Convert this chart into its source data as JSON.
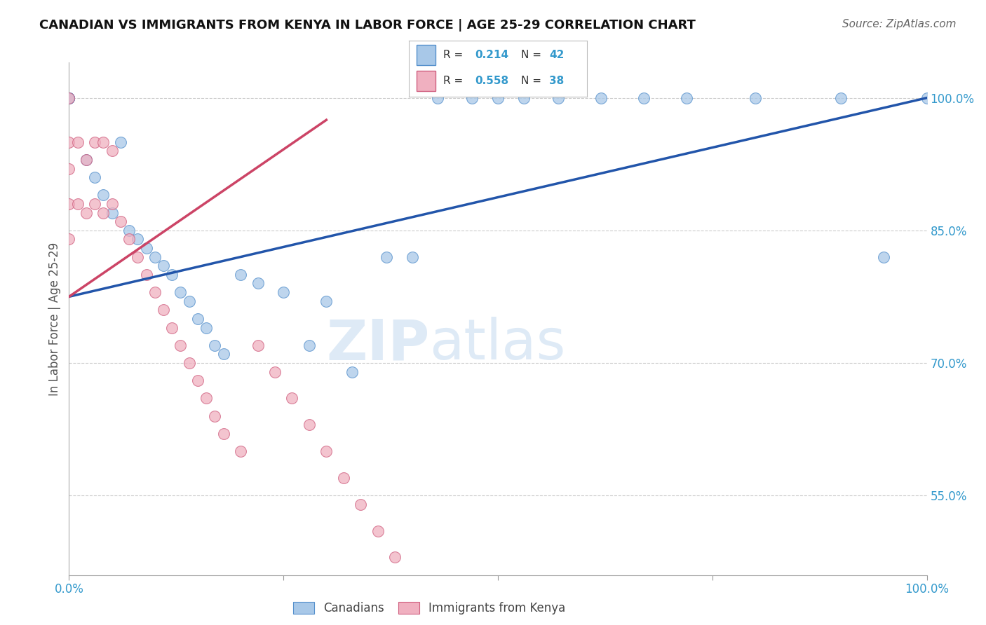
{
  "title": "CANADIAN VS IMMIGRANTS FROM KENYA IN LABOR FORCE | AGE 25-29 CORRELATION CHART",
  "source": "Source: ZipAtlas.com",
  "ylabel": "In Labor Force | Age 25-29",
  "yaxis_labels": [
    "100.0%",
    "85.0%",
    "70.0%",
    "55.0%"
  ],
  "yaxis_values": [
    1.0,
    0.85,
    0.7,
    0.55
  ],
  "xlim": [
    0.0,
    1.0
  ],
  "ylim": [
    0.46,
    1.04
  ],
  "blue_color": "#A8C8E8",
  "pink_color": "#F0B0C0",
  "blue_edge_color": "#5590CC",
  "pink_edge_color": "#D06080",
  "blue_line_color": "#2255AA",
  "pink_line_color": "#CC4466",
  "canadians_x": [
    0.0,
    0.0,
    0.0,
    0.0,
    0.0,
    0.02,
    0.03,
    0.04,
    0.05,
    0.06,
    0.07,
    0.08,
    0.09,
    0.1,
    0.11,
    0.12,
    0.13,
    0.14,
    0.15,
    0.16,
    0.17,
    0.18,
    0.2,
    0.22,
    0.25,
    0.28,
    0.3,
    0.33,
    0.37,
    0.4,
    0.43,
    0.47,
    0.5,
    0.53,
    0.57,
    0.62,
    0.67,
    0.72,
    0.8,
    0.9,
    0.95,
    1.0
  ],
  "canadians_y": [
    1.0,
    1.0,
    1.0,
    1.0,
    1.0,
    0.93,
    0.91,
    0.89,
    0.87,
    0.95,
    0.85,
    0.84,
    0.83,
    0.82,
    0.81,
    0.8,
    0.78,
    0.77,
    0.75,
    0.74,
    0.72,
    0.71,
    0.8,
    0.79,
    0.78,
    0.72,
    0.77,
    0.69,
    0.82,
    0.82,
    1.0,
    1.0,
    1.0,
    1.0,
    1.0,
    1.0,
    1.0,
    1.0,
    1.0,
    1.0,
    0.82,
    1.0
  ],
  "kenya_x": [
    0.0,
    0.0,
    0.0,
    0.0,
    0.0,
    0.01,
    0.01,
    0.02,
    0.02,
    0.03,
    0.03,
    0.04,
    0.04,
    0.05,
    0.05,
    0.06,
    0.07,
    0.08,
    0.09,
    0.1,
    0.11,
    0.12,
    0.13,
    0.14,
    0.15,
    0.16,
    0.17,
    0.18,
    0.2,
    0.22,
    0.24,
    0.26,
    0.28,
    0.3,
    0.32,
    0.34,
    0.36,
    0.38
  ],
  "kenya_y": [
    1.0,
    0.95,
    0.92,
    0.88,
    0.84,
    0.95,
    0.88,
    0.93,
    0.87,
    0.95,
    0.88,
    0.95,
    0.87,
    0.94,
    0.88,
    0.86,
    0.84,
    0.82,
    0.8,
    0.78,
    0.76,
    0.74,
    0.72,
    0.7,
    0.68,
    0.66,
    0.64,
    0.62,
    0.6,
    0.72,
    0.69,
    0.66,
    0.63,
    0.6,
    0.57,
    0.54,
    0.51,
    0.48
  ],
  "blue_trendline_x": [
    0.0,
    1.0
  ],
  "blue_trendline_y": [
    0.775,
    1.0
  ],
  "pink_trendline_x": [
    0.0,
    0.3
  ],
  "pink_trendline_y": [
    0.775,
    0.975
  ],
  "watermark_zip": "ZIP",
  "watermark_atlas": "atlas",
  "background_color": "#ffffff",
  "grid_color": "#cccccc",
  "legend_blue_r": "R = ",
  "legend_blue_r_val": "0.214",
  "legend_blue_n": "N = ",
  "legend_blue_n_val": "42",
  "legend_pink_r": "R = ",
  "legend_pink_r_val": "0.558",
  "legend_pink_n": "N = ",
  "legend_pink_n_val": "38"
}
